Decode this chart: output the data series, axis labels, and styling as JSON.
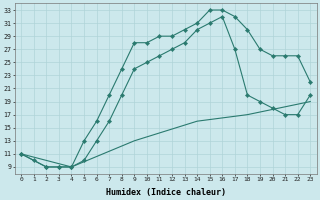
{
  "xlabel": "Humidex (Indice chaleur)",
  "bg_color": "#cce8ec",
  "grid_color": "#b0d4d8",
  "line_color": "#2a7a6f",
  "xlim": [
    -0.5,
    23.5
  ],
  "ylim": [
    8,
    34
  ],
  "xticks": [
    0,
    1,
    2,
    3,
    4,
    5,
    6,
    7,
    8,
    9,
    10,
    11,
    12,
    13,
    14,
    15,
    16,
    17,
    18,
    19,
    20,
    21,
    22,
    23
  ],
  "yticks": [
    9,
    11,
    13,
    15,
    17,
    19,
    21,
    23,
    25,
    27,
    29,
    31,
    33
  ],
  "curve1_x": [
    0,
    1,
    2,
    3,
    4,
    5,
    6,
    7,
    8,
    9,
    10,
    11,
    12,
    13,
    14,
    15,
    16,
    17,
    18,
    19,
    20,
    21,
    22,
    23
  ],
  "curve1_y": [
    11,
    10,
    9,
    9,
    9,
    13,
    16,
    20,
    24,
    28,
    28,
    29,
    29,
    30,
    31,
    33,
    33,
    32,
    30,
    27,
    26,
    26,
    26,
    22
  ],
  "curve2_x": [
    0,
    2,
    3,
    4,
    5,
    6,
    7,
    8,
    9,
    10,
    11,
    12,
    13,
    14,
    15,
    16,
    17,
    18,
    19,
    20,
    21,
    22,
    23
  ],
  "curve2_y": [
    11,
    9,
    9,
    9,
    10,
    13,
    16,
    20,
    24,
    25,
    26,
    27,
    28,
    30,
    31,
    32,
    27,
    20,
    19,
    18,
    17,
    17,
    20
  ],
  "curve3_x": [
    0,
    4,
    9,
    14,
    18,
    23
  ],
  "curve3_y": [
    11,
    9,
    13,
    16,
    17,
    19
  ]
}
